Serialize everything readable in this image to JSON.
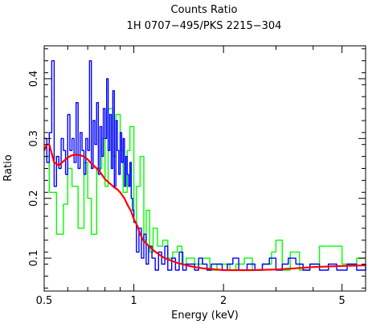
{
  "chart_data": {
    "type": "line",
    "title": "Counts Ratio",
    "subtitle": "1H 0707−495/PKS 2215−304",
    "xlabel": "Energy (keV)",
    "ylabel": "Ratio",
    "xscale": "log",
    "xlim": [
      0.5,
      6.0
    ],
    "ylim": [
      0.045,
      0.455
    ],
    "grid": false,
    "xticks": [
      {
        "value": 0.5,
        "label": "0.5"
      },
      {
        "value": 1,
        "label": "1"
      },
      {
        "value": 2,
        "label": "2"
      },
      {
        "value": 5,
        "label": "5"
      }
    ],
    "yticks": [
      {
        "value": 0.1,
        "label": "0.1"
      },
      {
        "value": 0.2,
        "label": "0.2"
      },
      {
        "value": 0.3,
        "label": "0.3"
      },
      {
        "value": 0.4,
        "label": "0.4"
      }
    ],
    "colors": {
      "green": "#00ff00",
      "blue": "#0000ff",
      "red": "#ff0000"
    },
    "series": [
      {
        "color": "#00ff00",
        "style": "step",
        "x": [
          0.5,
          0.52,
          0.55,
          0.58,
          0.6,
          0.62,
          0.65,
          0.68,
          0.7,
          0.72,
          0.75,
          0.78,
          0.8,
          0.82,
          0.85,
          0.87,
          0.9,
          0.92,
          0.95,
          0.97,
          1.0,
          1.02,
          1.05,
          1.08,
          1.1,
          1.13,
          1.16,
          1.2,
          1.25,
          1.3,
          1.35,
          1.4,
          1.45,
          1.5,
          1.6,
          1.7,
          1.8,
          1.9,
          2.0,
          2.1,
          2.2,
          2.35,
          2.5,
          2.7,
          2.9,
          3.0,
          3.15,
          3.35,
          3.6,
          3.9,
          4.2,
          4.5,
          5.0,
          5.6,
          6.0
        ],
        "y": [
          0.27,
          0.21,
          0.14,
          0.19,
          0.25,
          0.22,
          0.15,
          0.26,
          0.2,
          0.14,
          0.25,
          0.3,
          0.22,
          0.35,
          0.27,
          0.34,
          0.28,
          0.21,
          0.28,
          0.32,
          0.16,
          0.22,
          0.27,
          0.13,
          0.18,
          0.11,
          0.15,
          0.12,
          0.13,
          0.1,
          0.11,
          0.12,
          0.09,
          0.1,
          0.09,
          0.1,
          0.08,
          0.09,
          0.09,
          0.08,
          0.09,
          0.1,
          0.08,
          0.09,
          0.11,
          0.13,
          0.08,
          0.11,
          0.08,
          0.09,
          0.12,
          0.12,
          0.09,
          0.1,
          0.1
        ]
      },
      {
        "color": "#0000ff",
        "style": "step",
        "x": [
          0.5,
          0.51,
          0.52,
          0.53,
          0.54,
          0.55,
          0.56,
          0.57,
          0.58,
          0.59,
          0.6,
          0.61,
          0.62,
          0.63,
          0.64,
          0.65,
          0.66,
          0.67,
          0.68,
          0.69,
          0.7,
          0.71,
          0.72,
          0.73,
          0.74,
          0.75,
          0.76,
          0.77,
          0.78,
          0.79,
          0.8,
          0.81,
          0.82,
          0.83,
          0.84,
          0.85,
          0.86,
          0.87,
          0.88,
          0.89,
          0.9,
          0.91,
          0.92,
          0.93,
          0.94,
          0.95,
          0.96,
          0.97,
          0.98,
          0.99,
          1.0,
          1.02,
          1.04,
          1.06,
          1.08,
          1.1,
          1.12,
          1.15,
          1.18,
          1.21,
          1.24,
          1.27,
          1.3,
          1.34,
          1.38,
          1.42,
          1.46,
          1.5,
          1.55,
          1.6,
          1.65,
          1.7,
          1.76,
          1.82,
          1.9,
          1.98,
          2.06,
          2.15,
          2.25,
          2.4,
          2.55,
          2.7,
          2.85,
          3.0,
          3.15,
          3.3,
          3.5,
          3.7,
          3.9,
          4.2,
          4.5,
          4.8,
          5.2,
          5.6,
          6.0
        ],
        "y": [
          0.3,
          0.26,
          0.31,
          0.43,
          0.22,
          0.27,
          0.25,
          0.3,
          0.28,
          0.24,
          0.34,
          0.28,
          0.3,
          0.26,
          0.36,
          0.25,
          0.31,
          0.28,
          0.24,
          0.3,
          0.28,
          0.43,
          0.25,
          0.33,
          0.29,
          0.36,
          0.24,
          0.32,
          0.27,
          0.35,
          0.3,
          0.4,
          0.28,
          0.34,
          0.25,
          0.38,
          0.22,
          0.33,
          0.28,
          0.24,
          0.31,
          0.26,
          0.3,
          0.22,
          0.27,
          0.24,
          0.22,
          0.26,
          0.2,
          0.18,
          0.16,
          0.11,
          0.15,
          0.1,
          0.14,
          0.09,
          0.12,
          0.1,
          0.08,
          0.11,
          0.09,
          0.12,
          0.08,
          0.1,
          0.08,
          0.11,
          0.08,
          0.09,
          0.09,
          0.08,
          0.1,
          0.09,
          0.08,
          0.09,
          0.09,
          0.08,
          0.09,
          0.1,
          0.08,
          0.09,
          0.08,
          0.09,
          0.1,
          0.08,
          0.09,
          0.1,
          0.09,
          0.08,
          0.09,
          0.08,
          0.09,
          0.08,
          0.09,
          0.08,
          0.09
        ]
      },
      {
        "color": "#ff0000",
        "style": "smooth",
        "x": [
          0.5,
          0.51,
          0.52,
          0.54,
          0.56,
          0.58,
          0.6,
          0.62,
          0.64,
          0.66,
          0.68,
          0.7,
          0.72,
          0.75,
          0.78,
          0.8,
          0.83,
          0.86,
          0.88,
          0.9,
          0.93,
          0.95,
          0.98,
          1.0,
          1.03,
          1.05,
          1.08,
          1.1,
          1.15,
          1.2,
          1.25,
          1.3,
          1.4,
          1.5,
          1.6,
          1.7,
          1.8,
          2.0,
          2.2,
          2.5,
          3.0,
          3.5,
          4.0,
          5.0,
          6.0
        ],
        "y": [
          0.28,
          0.29,
          0.29,
          0.26,
          0.255,
          0.262,
          0.268,
          0.272,
          0.273,
          0.272,
          0.27,
          0.265,
          0.258,
          0.25,
          0.24,
          0.232,
          0.225,
          0.218,
          0.215,
          0.21,
          0.2,
          0.19,
          0.178,
          0.165,
          0.153,
          0.14,
          0.128,
          0.125,
          0.115,
          0.108,
          0.102,
          0.098,
          0.092,
          0.088,
          0.085,
          0.083,
          0.082,
          0.08,
          0.08,
          0.08,
          0.081,
          0.083,
          0.085,
          0.087,
          0.088
        ]
      }
    ]
  }
}
